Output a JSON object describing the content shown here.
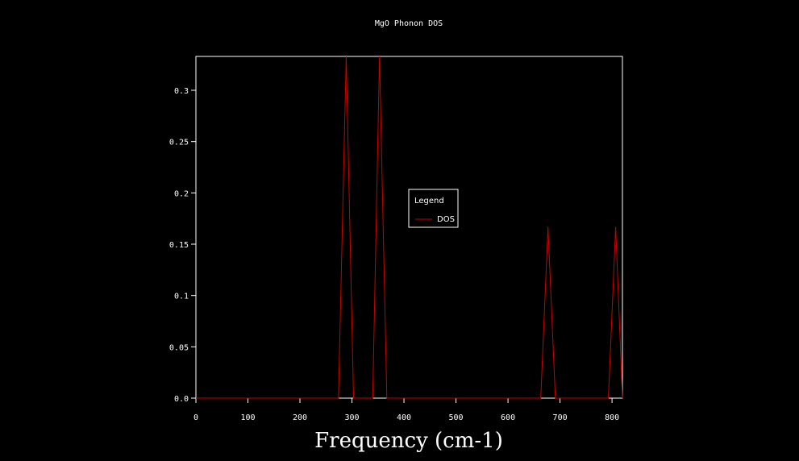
{
  "chart_data": {
    "type": "line",
    "title": "MgO Phonon DOS",
    "xlabel": "Frequency (cm-1)",
    "ylabel": "",
    "xlim": [
      0,
      820
    ],
    "ylim": [
      0,
      0.333
    ],
    "xticks": [
      0,
      100,
      200,
      300,
      400,
      500,
      600,
      700,
      800
    ],
    "yticks": [
      0.0,
      0.05,
      0.1,
      0.15,
      0.2,
      0.25,
      0.3
    ],
    "ytick_labels": [
      "0.0",
      "0.05",
      "0.1",
      "0.15",
      "0.2",
      "0.25",
      "0.3"
    ],
    "grid": false,
    "legend": {
      "title": "Legend",
      "placement": "center"
    },
    "series": [
      {
        "name": "DOS",
        "color": "#cc0000",
        "x": [
          0,
          274,
          289,
          303,
          340,
          353,
          367,
          663,
          677,
          691,
          793,
          807,
          820
        ],
        "y": [
          0,
          0,
          0.333,
          0,
          0,
          0.333,
          0,
          0,
          0.167,
          0,
          0,
          0.167,
          0
        ]
      }
    ]
  }
}
